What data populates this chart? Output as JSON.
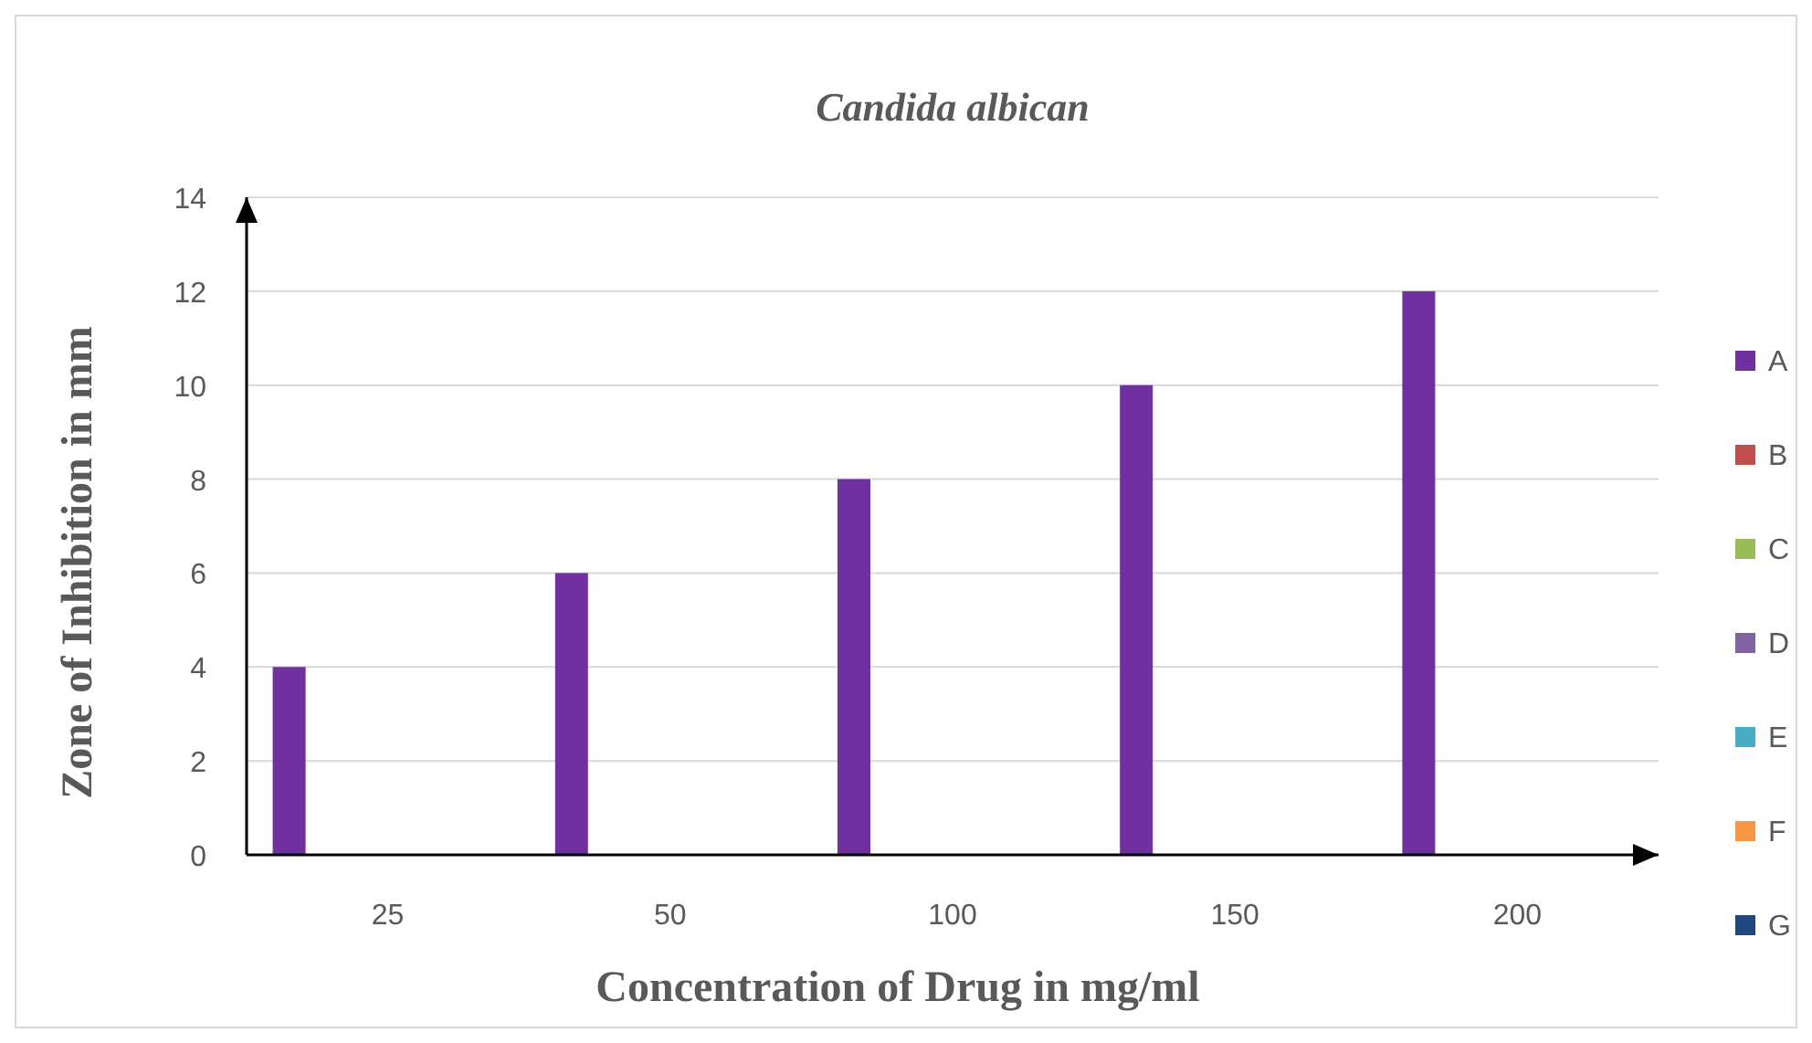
{
  "chart_data": {
    "type": "bar",
    "title": "Candida albican",
    "xlabel": "Concentration of Drug in mg/ml",
    "ylabel": "Zone of Inhibition in mm",
    "categories": [
      "25",
      "50",
      "100",
      "150",
      "200"
    ],
    "series": [
      {
        "name": "A",
        "color": "#7030a0",
        "values": [
          4,
          6,
          8,
          10,
          12
        ]
      },
      {
        "name": "B",
        "color": "#c0504d",
        "values": [
          0,
          0,
          0,
          0,
          0
        ]
      },
      {
        "name": "C",
        "color": "#9bbb59",
        "values": [
          0,
          0,
          0,
          0,
          0
        ]
      },
      {
        "name": "D",
        "color": "#8064a2",
        "values": [
          0,
          0,
          0,
          0,
          0
        ]
      },
      {
        "name": "E",
        "color": "#4bacc6",
        "values": [
          0,
          0,
          0,
          0,
          0
        ]
      },
      {
        "name": "F",
        "color": "#f79646",
        "values": [
          0,
          0,
          0,
          0,
          0
        ]
      },
      {
        "name": "G",
        "color": "#1f497d",
        "values": [
          0,
          0,
          0,
          0,
          0
        ]
      }
    ],
    "ylim": [
      0,
      14
    ],
    "yticks": [
      0,
      2,
      4,
      6,
      8,
      10,
      12,
      14
    ],
    "grid": "y",
    "legend": "right"
  }
}
